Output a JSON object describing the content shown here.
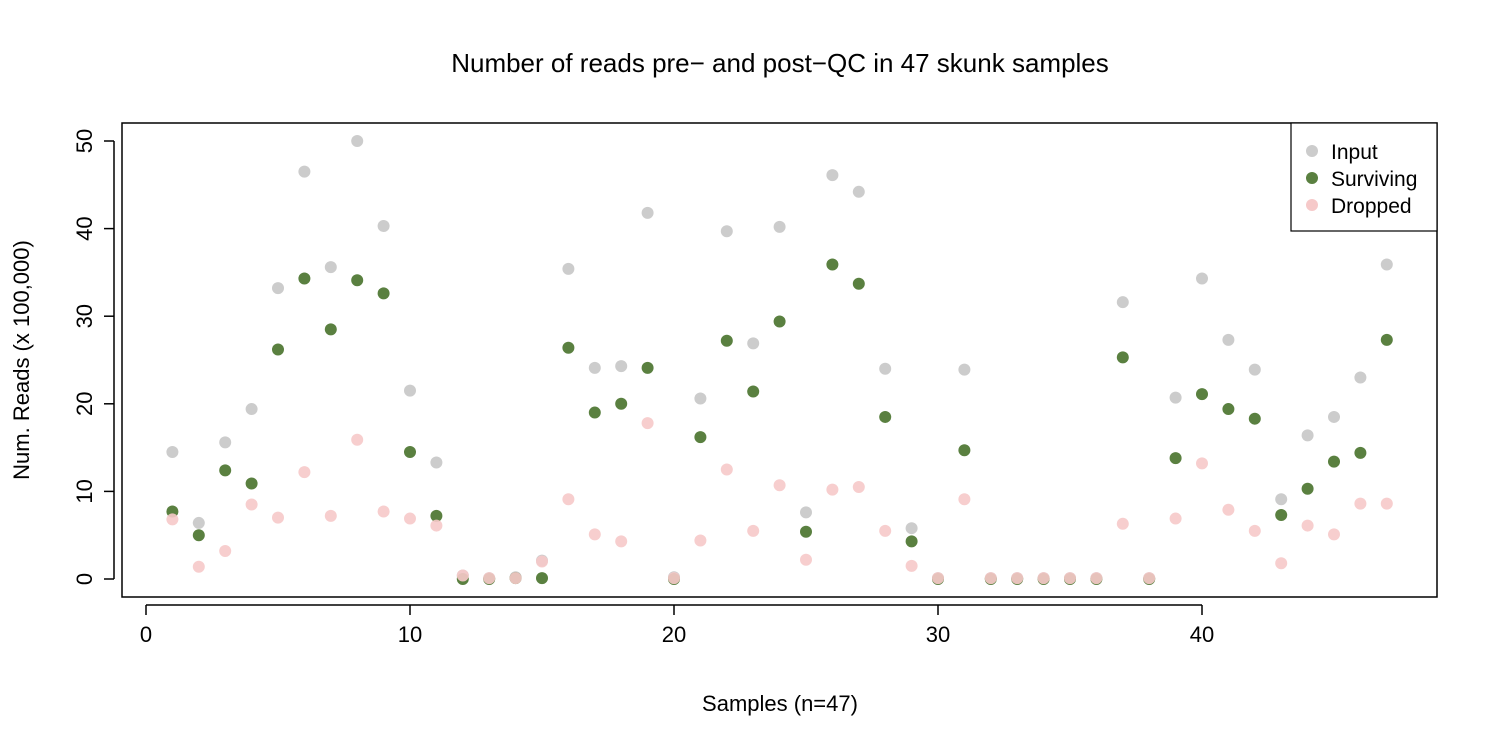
{
  "chart_data": {
    "type": "scatter",
    "title": "Number of reads pre− and post−QC in 47 skunk samples",
    "xlabel": "Samples (n=47)",
    "ylabel": "Num. Reads (x 100,000)",
    "xlim": [
      0,
      48
    ],
    "ylim": [
      0,
      50
    ],
    "xticks": [
      0,
      10,
      20,
      30,
      40
    ],
    "yticks": [
      0,
      10,
      20,
      30,
      40,
      50
    ],
    "legend_position": "top-right",
    "x": [
      1,
      2,
      3,
      4,
      5,
      6,
      7,
      8,
      9,
      10,
      11,
      12,
      13,
      14,
      15,
      16,
      17,
      18,
      19,
      20,
      21,
      22,
      23,
      24,
      25,
      26,
      27,
      28,
      29,
      30,
      31,
      32,
      33,
      34,
      35,
      36,
      37,
      38,
      39,
      40,
      41,
      42,
      43,
      44,
      45,
      46,
      47
    ],
    "series": [
      {
        "name": "Input",
        "color": "#cccccc",
        "values": [
          14.5,
          6.4,
          15.6,
          19.4,
          33.2,
          46.5,
          35.6,
          50.0,
          40.3,
          21.5,
          13.3,
          0.4,
          0.1,
          0.2,
          2.1,
          35.4,
          24.1,
          24.3,
          41.8,
          0.2,
          20.6,
          39.7,
          26.9,
          40.2,
          7.6,
          46.1,
          44.2,
          24.0,
          5.8,
          0.1,
          23.9,
          0.1,
          0.1,
          0.1,
          0.1,
          0.1,
          31.6,
          0.1,
          20.7,
          34.3,
          27.3,
          23.9,
          9.1,
          16.4,
          18.5,
          23.0,
          35.9
        ]
      },
      {
        "name": "Surviving",
        "color": "#5a8040",
        "values": [
          7.7,
          5.0,
          12.4,
          10.9,
          26.2,
          34.3,
          28.5,
          34.1,
          32.6,
          14.5,
          7.2,
          0.0,
          0.0,
          0.1,
          0.1,
          26.4,
          19.0,
          20.0,
          24.1,
          0.0,
          16.2,
          27.2,
          21.4,
          29.4,
          5.4,
          35.9,
          33.7,
          18.5,
          4.3,
          0.0,
          14.7,
          0.0,
          0.0,
          0.0,
          0.0,
          0.0,
          25.3,
          0.0,
          13.8,
          21.1,
          19.4,
          18.3,
          7.3,
          10.3,
          13.4,
          14.4,
          27.3
        ]
      },
      {
        "name": "Dropped",
        "color": "#f6c9c9",
        "values": [
          6.8,
          1.4,
          3.2,
          8.5,
          7.0,
          12.2,
          7.2,
          15.9,
          7.7,
          6.9,
          6.1,
          0.4,
          0.1,
          0.1,
          2.0,
          9.1,
          5.1,
          4.3,
          17.8,
          0.1,
          4.4,
          12.5,
          5.5,
          10.7,
          2.2,
          10.2,
          10.5,
          5.5,
          1.5,
          0.1,
          9.1,
          0.1,
          0.1,
          0.1,
          0.1,
          0.1,
          6.3,
          0.1,
          6.9,
          13.2,
          7.9,
          5.5,
          1.8,
          6.1,
          5.1,
          8.6,
          8.6
        ]
      }
    ]
  }
}
